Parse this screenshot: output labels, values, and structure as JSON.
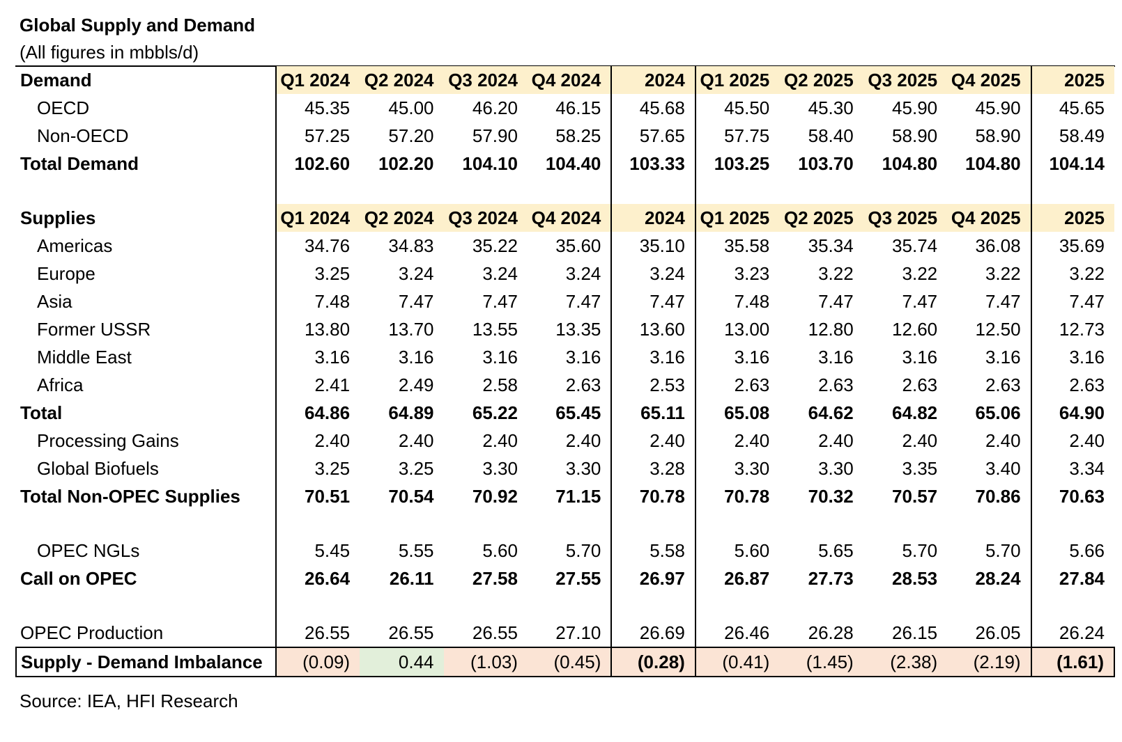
{
  "title": "Global Supply and Demand",
  "subtitle": "(All figures in mbbls/d)",
  "source": "Source: IEA, HFI Research",
  "columns": [
    "Q1 2024",
    "Q2 2024",
    "Q3 2024",
    "Q4 2024",
    "2024",
    "Q1 2025",
    "Q2 2025",
    "Q3 2025",
    "Q4 2025",
    "2025"
  ],
  "colors": {
    "header_fill": "#fdf0cc",
    "negative_fill": "#fbe4d5",
    "positive_fill": "#e2efda"
  },
  "demand": {
    "header": "Demand",
    "rows": [
      {
        "label": "OECD",
        "values": [
          "45.35",
          "45.00",
          "46.20",
          "46.15",
          "45.68",
          "45.50",
          "45.30",
          "45.90",
          "45.90",
          "45.65"
        ]
      },
      {
        "label": "Non-OECD",
        "values": [
          "57.25",
          "57.20",
          "57.90",
          "58.25",
          "57.65",
          "57.75",
          "58.40",
          "58.90",
          "58.90",
          "58.49"
        ]
      }
    ],
    "total": {
      "label": "Total Demand",
      "values": [
        "102.60",
        "102.20",
        "104.10",
        "104.40",
        "103.33",
        "103.25",
        "103.70",
        "104.80",
        "104.80",
        "104.14"
      ]
    }
  },
  "supplies": {
    "header": "Supplies",
    "rows": [
      {
        "label": "Americas",
        "values": [
          "34.76",
          "34.83",
          "35.22",
          "35.60",
          "35.10",
          "35.58",
          "35.34",
          "35.74",
          "36.08",
          "35.69"
        ]
      },
      {
        "label": "Europe",
        "values": [
          "3.25",
          "3.24",
          "3.24",
          "3.24",
          "3.24",
          "3.23",
          "3.22",
          "3.22",
          "3.22",
          "3.22"
        ]
      },
      {
        "label": "Asia",
        "values": [
          "7.48",
          "7.47",
          "7.47",
          "7.47",
          "7.47",
          "7.48",
          "7.47",
          "7.47",
          "7.47",
          "7.47"
        ]
      },
      {
        "label": "Former USSR",
        "values": [
          "13.80",
          "13.70",
          "13.55",
          "13.35",
          "13.60",
          "13.00",
          "12.80",
          "12.60",
          "12.50",
          "12.73"
        ]
      },
      {
        "label": "Middle East",
        "values": [
          "3.16",
          "3.16",
          "3.16",
          "3.16",
          "3.16",
          "3.16",
          "3.16",
          "3.16",
          "3.16",
          "3.16"
        ]
      },
      {
        "label": "Africa",
        "values": [
          "2.41",
          "2.49",
          "2.58",
          "2.63",
          "2.53",
          "2.63",
          "2.63",
          "2.63",
          "2.63",
          "2.63"
        ]
      }
    ],
    "total": {
      "label": "Total",
      "values": [
        "64.86",
        "64.89",
        "65.22",
        "65.45",
        "65.11",
        "65.08",
        "64.62",
        "64.82",
        "65.06",
        "64.90"
      ]
    },
    "processing_gains": {
      "label": "Processing Gains",
      "values": [
        "2.40",
        "2.40",
        "2.40",
        "2.40",
        "2.40",
        "2.40",
        "2.40",
        "2.40",
        "2.40",
        "2.40"
      ]
    },
    "global_biofuels": {
      "label": "Global Biofuels",
      "values": [
        "3.25",
        "3.25",
        "3.30",
        "3.30",
        "3.28",
        "3.30",
        "3.30",
        "3.35",
        "3.40",
        "3.34"
      ]
    },
    "total_non_opec": {
      "label": "Total Non-OPEC Supplies",
      "values": [
        "70.51",
        "70.54",
        "70.92",
        "71.15",
        "70.78",
        "70.78",
        "70.32",
        "70.57",
        "70.86",
        "70.63"
      ]
    }
  },
  "opec_ngls": {
    "label": "OPEC NGLs",
    "values": [
      "5.45",
      "5.55",
      "5.60",
      "5.70",
      "5.58",
      "5.60",
      "5.65",
      "5.70",
      "5.70",
      "5.66"
    ]
  },
  "call_on_opec": {
    "label": "Call on OPEC",
    "values": [
      "26.64",
      "26.11",
      "27.58",
      "27.55",
      "26.97",
      "26.87",
      "27.73",
      "28.53",
      "28.24",
      "27.84"
    ]
  },
  "opec_production": {
    "label": "OPEC Production",
    "values": [
      "26.55",
      "26.55",
      "26.55",
      "27.10",
      "26.69",
      "26.46",
      "26.28",
      "26.15",
      "26.05",
      "26.24"
    ]
  },
  "imbalance": {
    "label": "Supply - Demand Imbalance",
    "values": [
      "(0.09)",
      "0.44",
      "(1.03)",
      "(0.45)",
      "(0.28)",
      "(0.41)",
      "(1.45)",
      "(2.38)",
      "(2.19)",
      "(1.61)"
    ],
    "signs": [
      "neg",
      "pos",
      "neg",
      "neg",
      "neg",
      "neg",
      "neg",
      "neg",
      "neg",
      "neg"
    ]
  }
}
